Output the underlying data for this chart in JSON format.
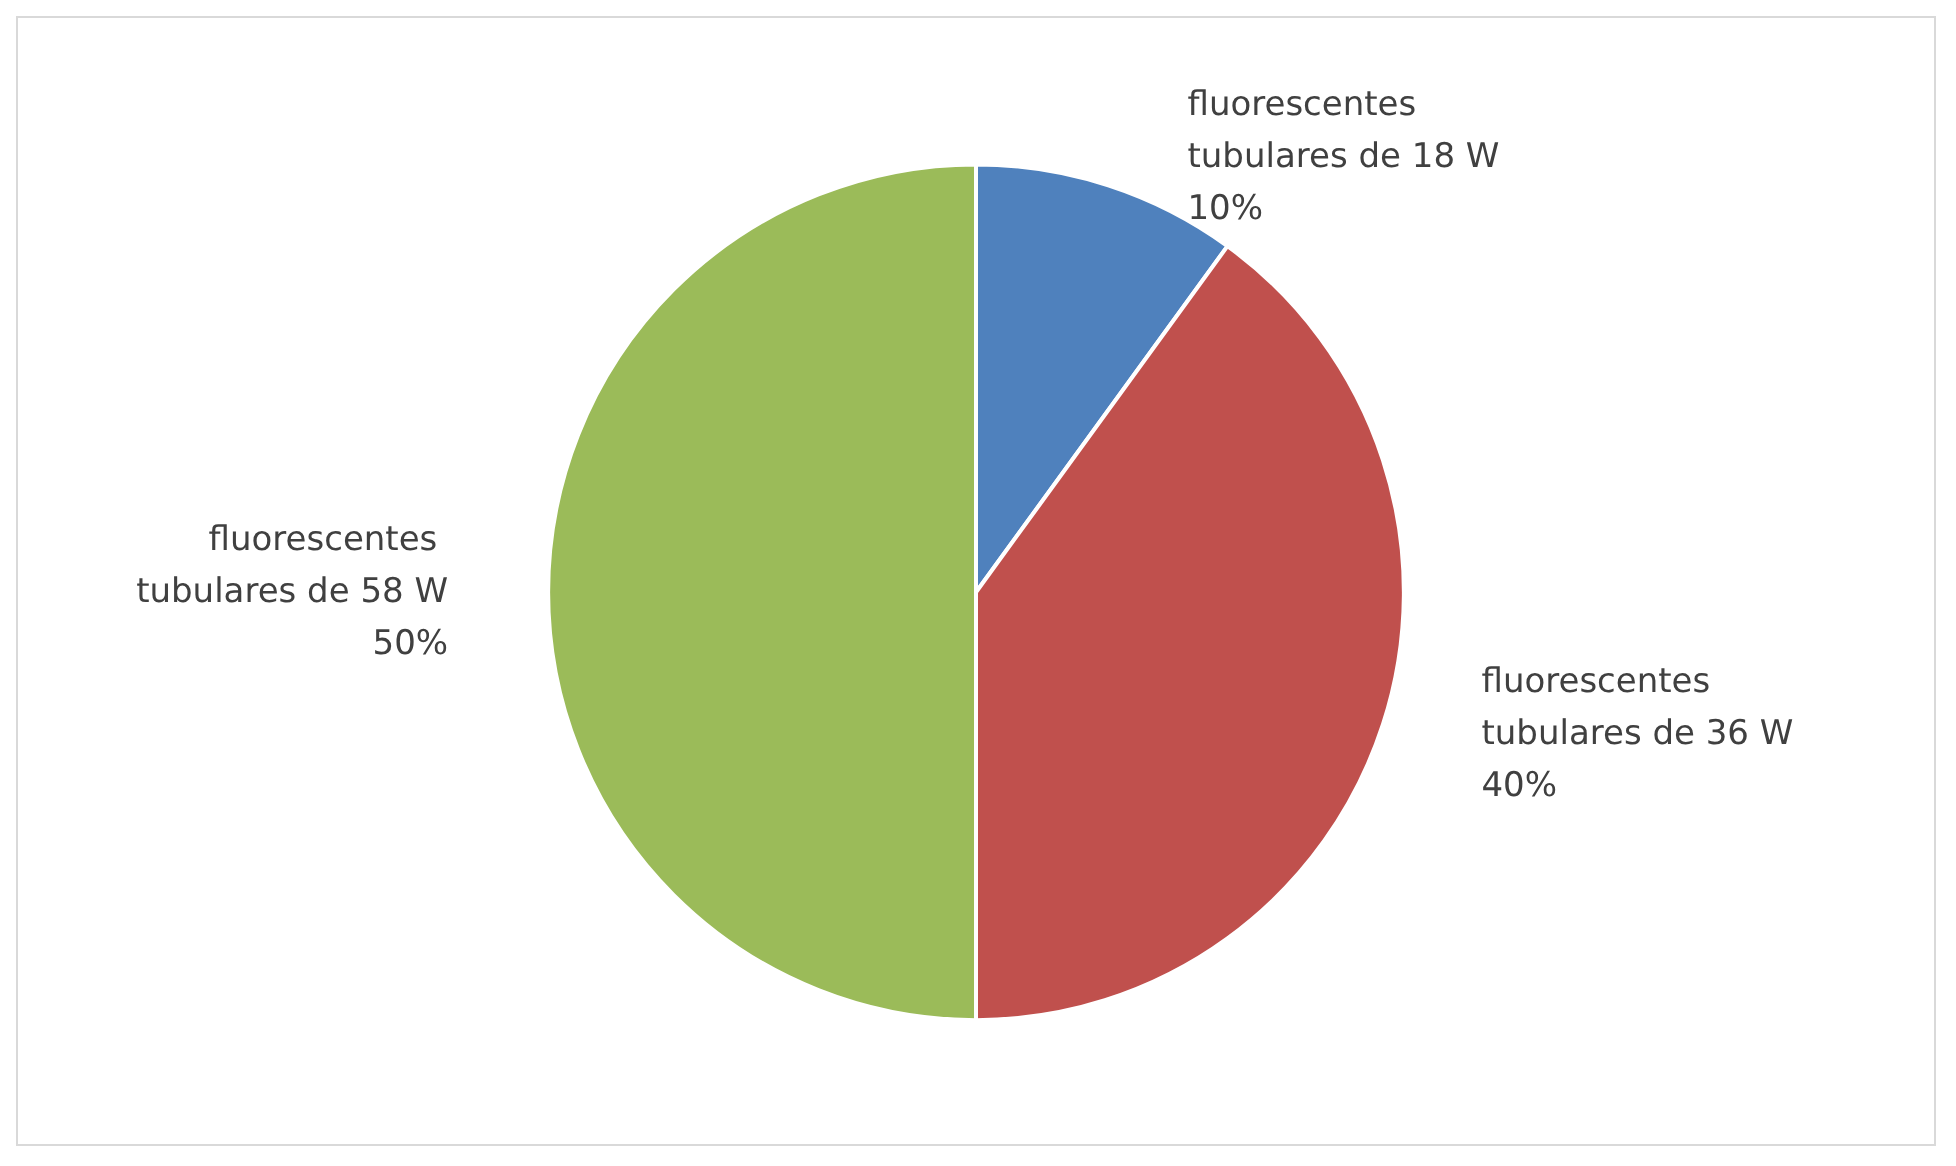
{
  "chart_data": {
    "type": "pie",
    "categories": [
      "fluorescentes tubulares de 18 W",
      "fluorescentes tubulares de 36 W",
      "fluorescentes tubulares de 58 W"
    ],
    "values": [
      10,
      40,
      50
    ],
    "value_labels": [
      "10%",
      "40%",
      "50%"
    ],
    "colors": [
      "#4f81bd",
      "#c0504d",
      "#9bbb59"
    ],
    "legend": false
  }
}
